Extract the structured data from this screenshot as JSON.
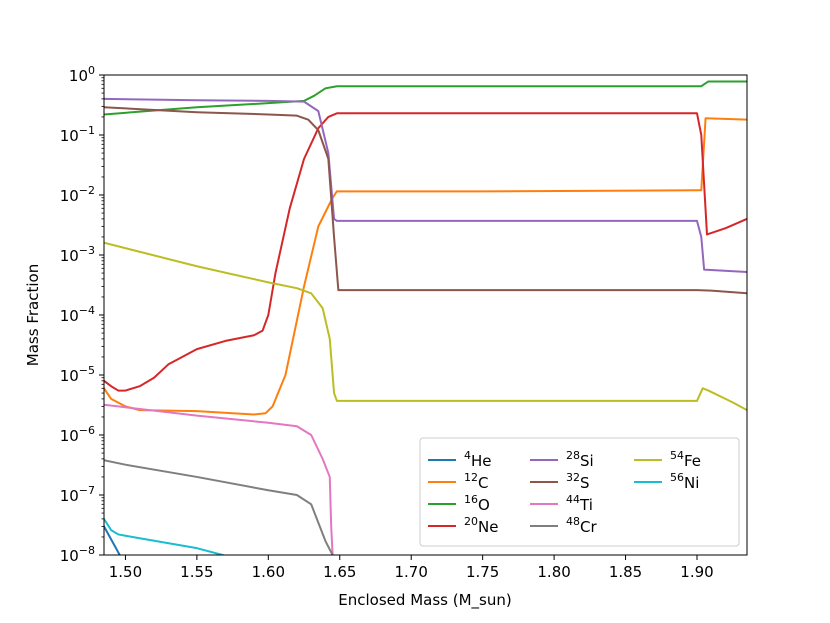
{
  "chart_data": {
    "type": "line",
    "title": "",
    "xlabel": "Enclosed Mass (M_sun)",
    "ylabel": "Mass Fraction",
    "xlim": [
      1.485,
      1.935
    ],
    "ylim": [
      1e-08,
      1
    ],
    "yscale": "log",
    "grid": false,
    "legend_position": "lower-right",
    "legend_columns": 3,
    "x_ticks": [
      {
        "value": 1.5,
        "label": "1.50"
      },
      {
        "value": 1.55,
        "label": "1.55"
      },
      {
        "value": 1.6,
        "label": "1.60"
      },
      {
        "value": 1.65,
        "label": "1.65"
      },
      {
        "value": 1.7,
        "label": "1.70"
      },
      {
        "value": 1.75,
        "label": "1.75"
      },
      {
        "value": 1.8,
        "label": "1.80"
      },
      {
        "value": 1.85,
        "label": "1.85"
      },
      {
        "value": 1.9,
        "label": "1.90"
      }
    ],
    "y_ticks": [
      {
        "value": 1,
        "base": "10",
        "exp": "0"
      },
      {
        "value": 0.1,
        "base": "10",
        "exp": "−1"
      },
      {
        "value": 0.01,
        "base": "10",
        "exp": "−2"
      },
      {
        "value": 0.001,
        "base": "10",
        "exp": "−3"
      },
      {
        "value": 0.0001,
        "base": "10",
        "exp": "−4"
      },
      {
        "value": 1e-05,
        "base": "10",
        "exp": "−5"
      },
      {
        "value": 1e-06,
        "base": "10",
        "exp": "−6"
      },
      {
        "value": 1e-07,
        "base": "10",
        "exp": "−7"
      },
      {
        "value": 1e-08,
        "base": "10",
        "exp": "−8"
      }
    ],
    "series": [
      {
        "id": "he4",
        "mass": "4",
        "element": "He",
        "color": "#1f77b4",
        "x": [
          1.485,
          1.496
        ],
        "y": [
          3e-08,
          1e-08
        ]
      },
      {
        "id": "c12",
        "mass": "12",
        "element": "C",
        "color": "#ff7f0e",
        "x": [
          1.485,
          1.49,
          1.5,
          1.51,
          1.55,
          1.59,
          1.598,
          1.603,
          1.612,
          1.625,
          1.635,
          1.645,
          1.648,
          1.75,
          1.9,
          1.903,
          1.906,
          1.935
        ],
        "y": [
          6e-06,
          4e-06,
          3e-06,
          2.6e-06,
          2.5e-06,
          2.2e-06,
          2.3e-06,
          3e-06,
          1e-05,
          0.0003,
          0.003,
          0.009,
          0.0115,
          0.0115,
          0.012,
          0.012,
          0.19,
          0.18
        ]
      },
      {
        "id": "o16",
        "mass": "16",
        "element": "O",
        "color": "#2ca02c",
        "x": [
          1.485,
          1.55,
          1.6,
          1.625,
          1.632,
          1.64,
          1.648,
          1.7,
          1.9,
          1.903,
          1.908,
          1.935
        ],
        "y": [
          0.22,
          0.29,
          0.34,
          0.37,
          0.45,
          0.6,
          0.65,
          0.65,
          0.65,
          0.65,
          0.78,
          0.78
        ]
      },
      {
        "id": "ne20",
        "mass": "20",
        "element": "Ne",
        "color": "#d62728",
        "x": [
          1.485,
          1.49,
          1.495,
          1.5,
          1.51,
          1.52,
          1.53,
          1.55,
          1.57,
          1.59,
          1.596,
          1.6,
          1.605,
          1.615,
          1.625,
          1.635,
          1.642,
          1.648,
          1.7,
          1.8,
          1.9,
          1.903,
          1.907,
          1.92,
          1.935
        ],
        "y": [
          8e-06,
          6.5e-06,
          5.5e-06,
          5.5e-06,
          6.5e-06,
          9e-06,
          1.5e-05,
          2.7e-05,
          3.7e-05,
          4.6e-05,
          5.5e-05,
          0.0001,
          0.0005,
          0.006,
          0.04,
          0.13,
          0.2,
          0.23,
          0.23,
          0.23,
          0.23,
          0.1,
          0.0022,
          0.0028,
          0.004
        ]
      },
      {
        "id": "si28",
        "mass": "28",
        "element": "Si",
        "color": "#9467bd",
        "x": [
          1.485,
          1.55,
          1.6,
          1.625,
          1.635,
          1.642,
          1.646,
          1.648,
          1.7,
          1.8,
          1.9,
          1.903,
          1.905,
          1.935
        ],
        "y": [
          0.4,
          0.38,
          0.37,
          0.36,
          0.25,
          0.05,
          0.004,
          0.0037,
          0.0037,
          0.0037,
          0.0037,
          0.002,
          0.00057,
          0.00052
        ]
      },
      {
        "id": "s32",
        "mass": "32",
        "element": "S",
        "color": "#8c564b",
        "x": [
          1.485,
          1.55,
          1.6,
          1.62,
          1.628,
          1.635,
          1.642,
          1.646,
          1.649,
          1.7,
          1.8,
          1.9,
          1.91,
          1.935
        ],
        "y": [
          0.29,
          0.24,
          0.22,
          0.21,
          0.18,
          0.12,
          0.04,
          0.002,
          0.00026,
          0.00026,
          0.00026,
          0.00026,
          0.000255,
          0.00023
        ]
      },
      {
        "id": "ti44",
        "mass": "44",
        "element": "Ti",
        "color": "#e377c2",
        "x": [
          1.485,
          1.5,
          1.55,
          1.6,
          1.62,
          1.63,
          1.638,
          1.643,
          1.644,
          1.645
        ],
        "y": [
          3.2e-06,
          2.9e-06,
          2.1e-06,
          1.6e-06,
          1.4e-06,
          1e-06,
          4e-07,
          2e-07,
          3e-08,
          1e-08
        ]
      },
      {
        "id": "cr48",
        "mass": "48",
        "element": "Cr",
        "color": "#7f7f7f",
        "x": [
          1.485,
          1.5,
          1.55,
          1.6,
          1.62,
          1.63,
          1.636,
          1.64,
          1.645
        ],
        "y": [
          3.8e-07,
          3.2e-07,
          2e-07,
          1.2e-07,
          1e-07,
          7e-08,
          3e-08,
          1.7e-08,
          1e-08
        ]
      },
      {
        "id": "fe54",
        "mass": "54",
        "element": "Fe",
        "color": "#bcbd22",
        "x": [
          1.485,
          1.55,
          1.6,
          1.62,
          1.63,
          1.638,
          1.643,
          1.646,
          1.648,
          1.7,
          1.8,
          1.9,
          1.904,
          1.908,
          1.925,
          1.935
        ],
        "y": [
          0.0016,
          0.00065,
          0.00035,
          0.00028,
          0.00023,
          0.00013,
          4e-05,
          5e-06,
          3.7e-06,
          3.7e-06,
          3.7e-06,
          3.7e-06,
          6e-06,
          5.5e-06,
          3.5e-06,
          2.6e-06
        ]
      },
      {
        "id": "ni56",
        "mass": "56",
        "element": "Ni",
        "color": "#17becf",
        "x": [
          1.485,
          1.49,
          1.495,
          1.51,
          1.55,
          1.568
        ],
        "y": [
          4e-08,
          2.6e-08,
          2.2e-08,
          1.9e-08,
          1.3e-08,
          1e-08
        ]
      }
    ],
    "legend_order": [
      "he4",
      "c12",
      "o16",
      "ne20",
      "si28",
      "s32",
      "ti44",
      "cr48",
      "fe54",
      "ni56"
    ]
  }
}
